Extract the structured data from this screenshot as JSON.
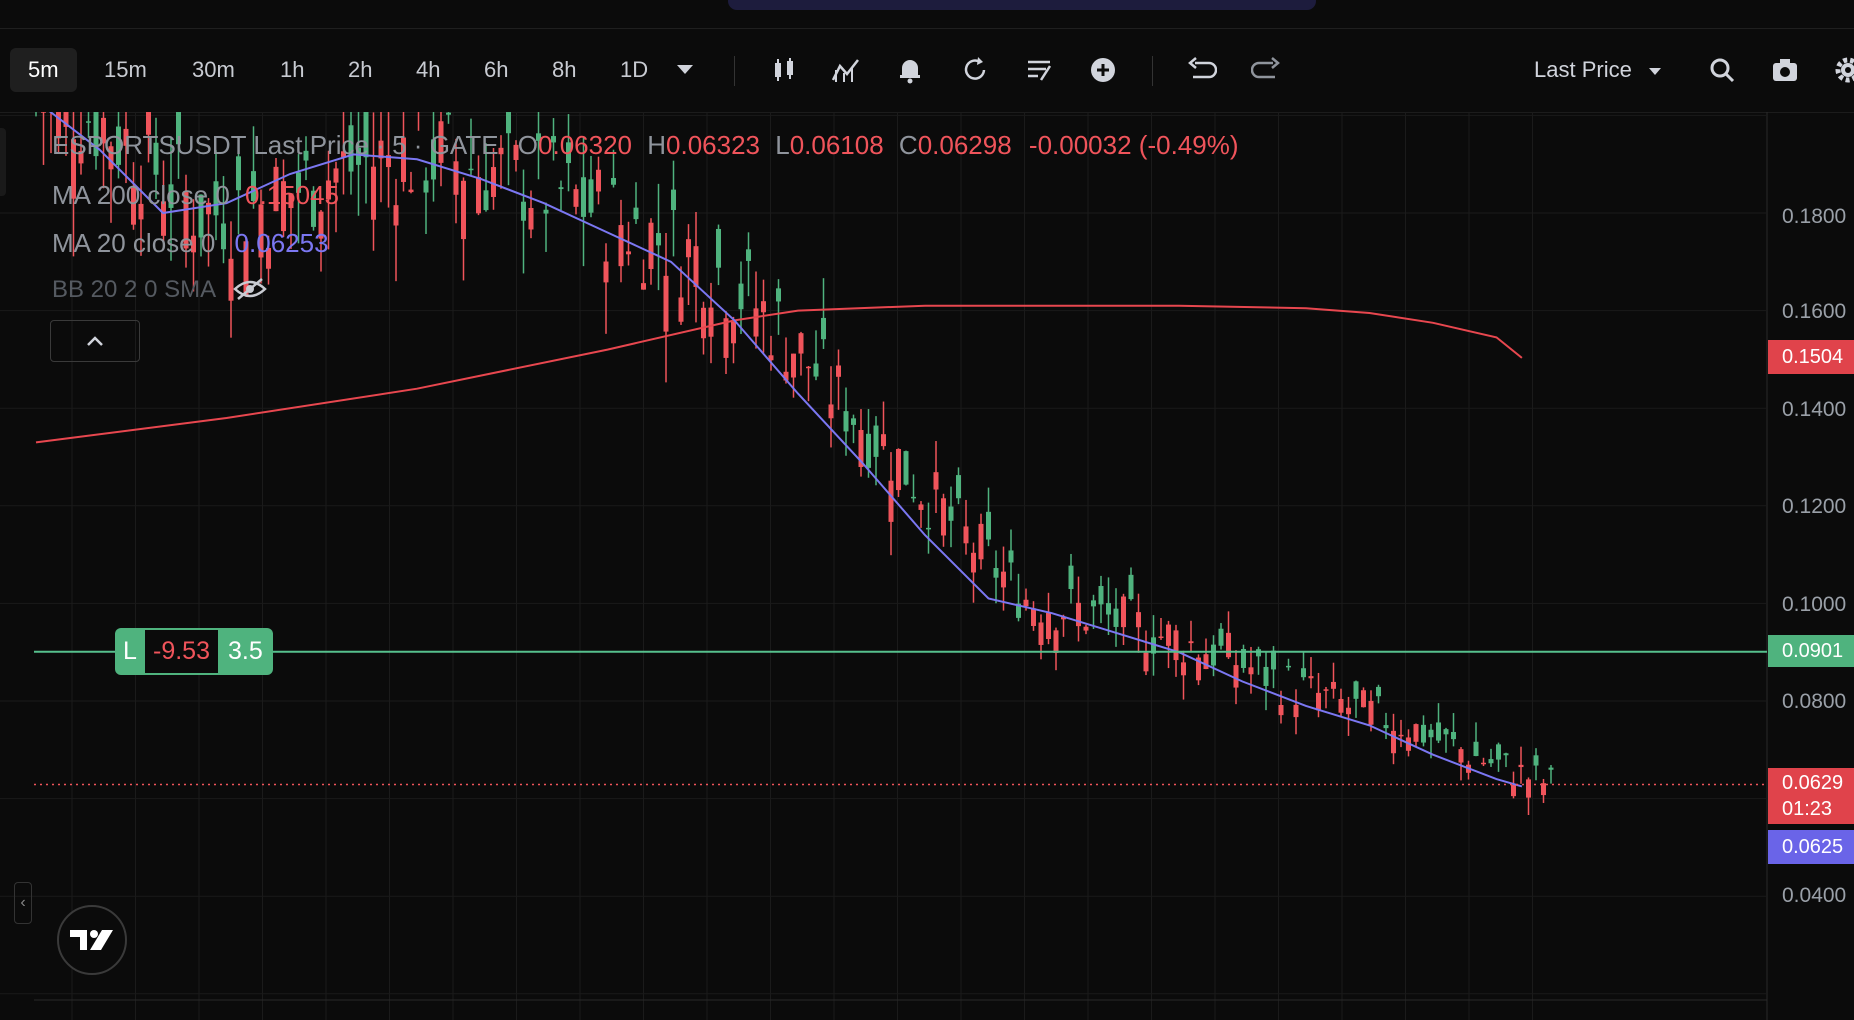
{
  "toolbar": {
    "timeframes": [
      "5m",
      "15m",
      "30m",
      "1h",
      "2h",
      "4h",
      "6h",
      "8h",
      "1D"
    ],
    "active_timeframe": "5m",
    "price_type": "Last Price"
  },
  "legend": {
    "symbol": "ESPORTSUSDT",
    "price_source": "Last Price",
    "interval": "5",
    "exchange": "GATE",
    "open_label": "O",
    "open": "0.06320",
    "high_label": "H",
    "high": "0.06323",
    "low_label": "L",
    "low": "0.06108",
    "close_label": "C",
    "close": "0.06298",
    "change": "-0.00032 (-0.49%)",
    "ma200_label": "MA 200 close 0",
    "ma200_value": "0.15045",
    "ma20_label": "MA 20 close 0",
    "ma20_value": "0.06253",
    "bb_label": "BB 20 2 0 SMA"
  },
  "position": {
    "side": "L",
    "pnl": "-9.53",
    "qty": "3.5"
  },
  "price_tags": {
    "ma200": "0.1504",
    "entry": "0.0901",
    "last": "0.0629",
    "countdown": "01:23",
    "ma20": "0.0625"
  },
  "colors": {
    "up": "#4fb37e",
    "down": "#f0545b",
    "ma20": "#7b77f2",
    "ma200": "#e8474f",
    "entry_line": "#56c08d",
    "background": "#0b0b0b"
  },
  "chart_data": {
    "type": "candlestick",
    "yaxis_ticks": [
      "0.1800",
      "0.1600",
      "0.1400",
      "0.1200",
      "0.1000",
      "0.0800",
      "0.0400"
    ],
    "ylim": [
      0.018,
      0.204
    ],
    "entry_price": 0.0901,
    "last_price": 0.0629,
    "series": [
      {
        "name": "MA 200 close 0",
        "points": [
          [
            0,
            0.133
          ],
          [
            3,
            0.138
          ],
          [
            6,
            0.144
          ],
          [
            9,
            0.152
          ],
          [
            11,
            0.158
          ],
          [
            12,
            0.16
          ],
          [
            14,
            0.161
          ],
          [
            16,
            0.161
          ],
          [
            18,
            0.161
          ],
          [
            20,
            0.1605
          ],
          [
            21,
            0.1595
          ],
          [
            22,
            0.1575
          ],
          [
            23,
            0.1545
          ],
          [
            23.4,
            0.1503
          ]
        ]
      },
      {
        "name": "MA 20 close 0",
        "points": [
          [
            0,
            0.203
          ],
          [
            1,
            0.193
          ],
          [
            2,
            0.18
          ],
          [
            3,
            0.182
          ],
          [
            4,
            0.188
          ],
          [
            5,
            0.192
          ],
          [
            6,
            0.191
          ],
          [
            7,
            0.187
          ],
          [
            8,
            0.182
          ],
          [
            9,
            0.176
          ],
          [
            10,
            0.17
          ],
          [
            11,
            0.158
          ],
          [
            12,
            0.143
          ],
          [
            13,
            0.129
          ],
          [
            14,
            0.114
          ],
          [
            15,
            0.101
          ],
          [
            16,
            0.098
          ],
          [
            17,
            0.094
          ],
          [
            18,
            0.09
          ],
          [
            19,
            0.084
          ],
          [
            20,
            0.079
          ],
          [
            21,
            0.075
          ],
          [
            22,
            0.069
          ],
          [
            23,
            0.064
          ],
          [
            23.4,
            0.0625
          ]
        ]
      }
    ]
  }
}
